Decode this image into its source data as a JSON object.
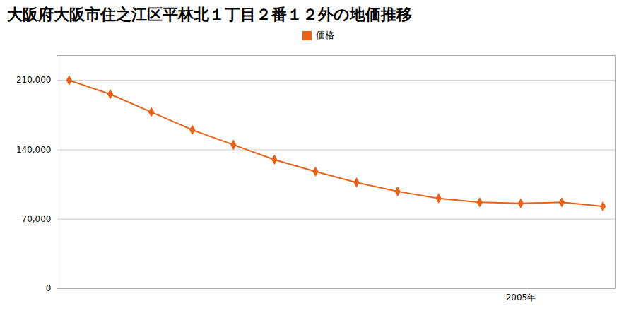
{
  "chart_data": {
    "type": "line",
    "title": "大阪府大阪市住之江区平林北１丁目２番１２外の地価推移",
    "x": [
      1994,
      1995,
      1996,
      1997,
      1998,
      1999,
      2000,
      2001,
      2002,
      2003,
      2004,
      2005,
      2006,
      2007
    ],
    "series": [
      {
        "name": "価格",
        "color": "#E8621A",
        "marker": "diamond",
        "values": [
          210000,
          196000,
          178000,
          160000,
          145000,
          130000,
          118000,
          107000,
          98000,
          91000,
          87000,
          86000,
          87000,
          83000
        ]
      }
    ],
    "xlim": [
      1993.7,
      2007.3
    ],
    "xticks": [
      {
        "value": 2005,
        "label": "2005年"
      }
    ],
    "ylim": [
      0,
      235000
    ],
    "yticks": [
      0,
      {
        "value": 70000,
        "label": "70,000"
      },
      {
        "value": 140000,
        "label": "140,000"
      },
      {
        "value": 210000,
        "label": "210,000"
      }
    ],
    "grid": true,
    "legend": "top"
  }
}
